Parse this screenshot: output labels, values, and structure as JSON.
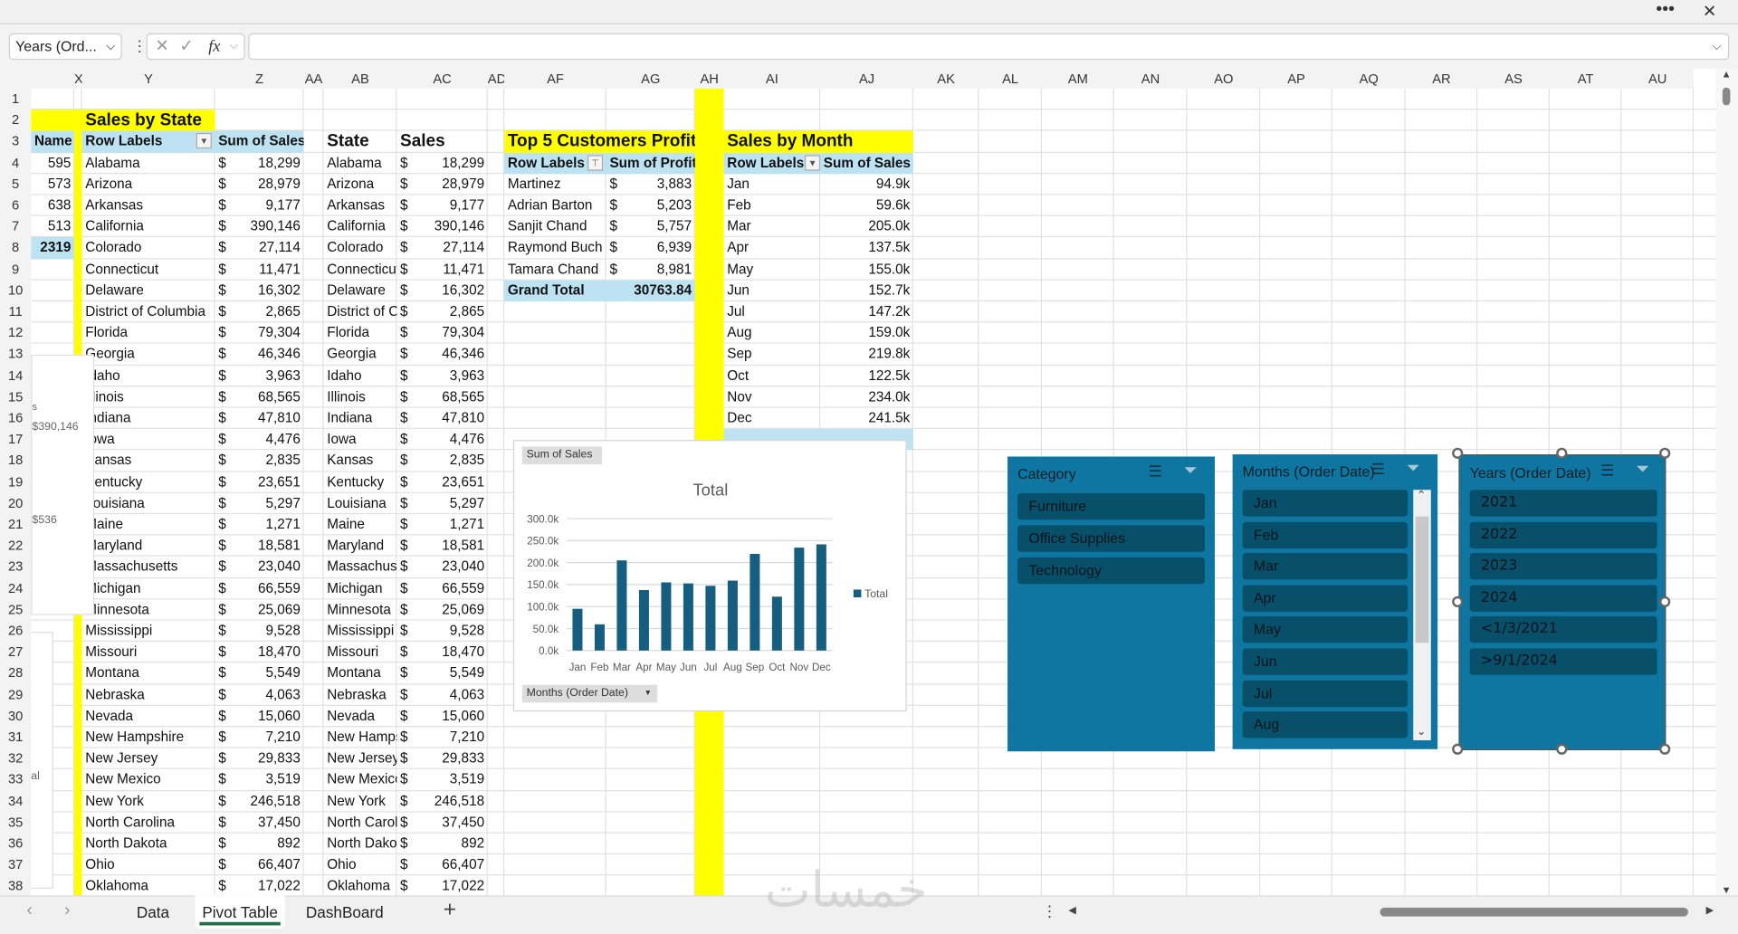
{
  "window": {
    "more_icon": "ellipsis-icon",
    "close_icon": "close-icon"
  },
  "formula_bar": {
    "name_box": "Years (Ord...",
    "cancel_glyph": "✕",
    "enter_glyph": "✓",
    "fx_label": "fx",
    "formula": ""
  },
  "columns": [
    "",
    "X",
    "Y",
    "Z",
    "AA",
    "AB",
    "AC",
    "AD",
    "AF",
    "AG",
    "AH",
    "AI",
    "AJ",
    "AK",
    "AL",
    "AM",
    "AN",
    "AO",
    "AP",
    "AQ",
    "AR",
    "AS",
    "AT",
    "AU"
  ],
  "sales_by_state": {
    "title": "Sales by State",
    "name_header": "Name",
    "row_labels_header": "Row Labels",
    "sum_header": "Sum of Sales",
    "names": [
      "595",
      "573",
      "638",
      "513",
      "2319"
    ],
    "currency": "$",
    "rows": [
      [
        "Alabama",
        "18,299"
      ],
      [
        "Arizona",
        "28,979"
      ],
      [
        "Arkansas",
        "9,177"
      ],
      [
        "California",
        "390,146"
      ],
      [
        "Colorado",
        "27,114"
      ],
      [
        "Connecticut",
        "11,471"
      ],
      [
        "Delaware",
        "16,302"
      ],
      [
        "District of Columbia",
        "2,865"
      ],
      [
        "Florida",
        "79,304"
      ],
      [
        "Georgia",
        "46,346"
      ],
      [
        "Idaho",
        "3,963"
      ],
      [
        "Illinois",
        "68,565"
      ],
      [
        "Indiana",
        "47,810"
      ],
      [
        "Iowa",
        "4,476"
      ],
      [
        "Kansas",
        "2,835"
      ],
      [
        "Kentucky",
        "23,651"
      ],
      [
        "Louisiana",
        "5,297"
      ],
      [
        "Maine",
        "1,271"
      ],
      [
        "Maryland",
        "18,581"
      ],
      [
        "Massachusetts",
        "23,040"
      ],
      [
        "Michigan",
        "66,559"
      ],
      [
        "Minnesota",
        "25,069"
      ],
      [
        "Mississippi",
        "9,528"
      ],
      [
        "Missouri",
        "18,470"
      ],
      [
        "Montana",
        "5,549"
      ],
      [
        "Nebraska",
        "4,063"
      ],
      [
        "Nevada",
        "15,060"
      ],
      [
        "New Hampshire",
        "7,210"
      ],
      [
        "New Jersey",
        "29,833"
      ],
      [
        "New Mexico",
        "3,519"
      ],
      [
        "New York",
        "246,518"
      ],
      [
        "North Carolina",
        "37,450"
      ],
      [
        "North Dakota",
        "892"
      ],
      [
        "Ohio",
        "66,407"
      ],
      [
        "Oklahoma",
        "17,022"
      ]
    ]
  },
  "state_table": {
    "state_header": "State",
    "sales_header": "Sales"
  },
  "behind_chart_fragments": {
    "a": "s",
    "b": "$390,146",
    "c": "$536",
    "d": "al"
  },
  "top5": {
    "title": "Top 5 Customers Profit",
    "row_labels_header": "Row Labels",
    "sum_header": "Sum of Profit",
    "rows": [
      [
        "Martinez",
        "3,883"
      ],
      [
        "Adrian Barton",
        "5,203"
      ],
      [
        "Sanjit Chand",
        "5,757"
      ],
      [
        "Raymond Buch",
        "6,939"
      ],
      [
        "Tamara Chand",
        "8,981"
      ]
    ],
    "grand_total_label": "Grand Total",
    "grand_total": "30763.84"
  },
  "sales_by_month": {
    "title": "Sales by Month",
    "row_labels_header": "Row Labels",
    "sum_header": "Sum of Sales",
    "rows": [
      [
        "Jan",
        "94.9k"
      ],
      [
        "Feb",
        "59.6k"
      ],
      [
        "Mar",
        "205.0k"
      ],
      [
        "Apr",
        "137.5k"
      ],
      [
        "May",
        "155.0k"
      ],
      [
        "Jun",
        "152.7k"
      ],
      [
        "Jul",
        "147.2k"
      ],
      [
        "Aug",
        "159.0k"
      ],
      [
        "Sep",
        "219.8k"
      ],
      [
        "Oct",
        "122.5k"
      ],
      [
        "Nov",
        "234.0k"
      ],
      [
        "Dec",
        "241.5k"
      ]
    ]
  },
  "chart_data": {
    "type": "bar",
    "title": "Total",
    "value_field_button": "Sum of Sales",
    "axis_field_button": "Months (Order Date)",
    "categories": [
      "Jan",
      "Feb",
      "Mar",
      "Apr",
      "May",
      "Jun",
      "Jul",
      "Aug",
      "Sep",
      "Oct",
      "Nov",
      "Dec"
    ],
    "series": [
      {
        "name": "Total",
        "values": [
          94900,
          59600,
          205000,
          137500,
          155000,
          152700,
          147200,
          159000,
          219800,
          122500,
          234000,
          241500
        ],
        "color": "#155e80"
      }
    ],
    "ylim": [
      0,
      300000
    ],
    "yticks": [
      "0.0k",
      "50.0k",
      "100.0k",
      "150.0k",
      "200.0k",
      "250.0k",
      "300.0k"
    ],
    "grid": true,
    "legend": "right"
  },
  "slicers": [
    {
      "title": "Category",
      "items": [
        "Furniture",
        "Office Supplies",
        "Technology"
      ]
    },
    {
      "title": "Months (Order Date)",
      "items": [
        "Jan",
        "Feb",
        "Mar",
        "Apr",
        "May",
        "Jun",
        "Jul",
        "Aug"
      ]
    },
    {
      "title": "Years (Order Date)",
      "items": [
        "2021",
        "2022",
        "2023",
        "2024",
        "<1/3/2021",
        ">9/1/2024"
      ]
    }
  ],
  "colors": {
    "slicer_bg": "#0e76a0",
    "slicer_item": "#084f6a",
    "highlight_yellow": "#ffff00",
    "pivot_header": "#bde3f3",
    "active_tab": "#1e7145"
  },
  "sheet_tabs": [
    {
      "label": "Data"
    },
    {
      "label": "Pivot Table",
      "active": true
    },
    {
      "label": "DashBoard"
    }
  ],
  "add_sheet": "+",
  "watermark": "خمسات"
}
